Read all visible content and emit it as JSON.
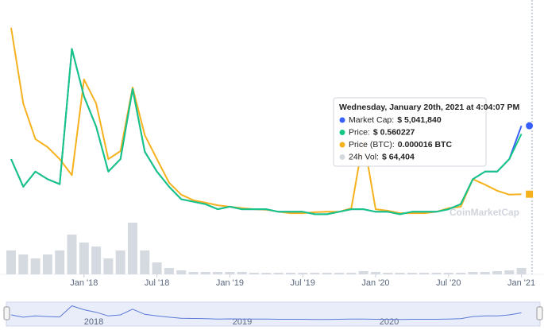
{
  "chart_data": {
    "type": "line",
    "x": [
      "2017-07",
      "2017-08",
      "2017-09",
      "2017-10",
      "2017-11",
      "2017-12",
      "2018-01",
      "2018-02",
      "2018-03",
      "2018-04",
      "2018-05",
      "2018-06",
      "2018-07",
      "2018-08",
      "2018-09",
      "2018-10",
      "2018-11",
      "2018-12",
      "2019-01",
      "2019-02",
      "2019-03",
      "2019-04",
      "2019-05",
      "2019-06",
      "2019-07",
      "2019-08",
      "2019-09",
      "2019-10",
      "2019-11",
      "2019-12",
      "2020-01",
      "2020-02",
      "2020-03",
      "2020-04",
      "2020-05",
      "2020-06",
      "2020-07",
      "2020-08",
      "2020-09",
      "2020-10",
      "2020-11",
      "2020-12",
      "2021-01"
    ],
    "xticks": [
      {
        "value": "2018-01",
        "label": "Jan '18"
      },
      {
        "value": "2018-07",
        "label": "Jul '18"
      },
      {
        "value": "2019-01",
        "label": "Jan '19"
      },
      {
        "value": "2019-07",
        "label": "Jul '19"
      },
      {
        "value": "2020-01",
        "label": "Jan '20"
      },
      {
        "value": "2020-07",
        "label": "Jul '20"
      },
      {
        "value": "2021-01",
        "label": "Jan '21"
      }
    ],
    "ylim": [
      0,
      1.0
    ],
    "y2lim": [
      0,
      5e-05
    ],
    "y3lim": [
      0,
      8500000
    ],
    "y4lim": [
      0,
      800000
    ],
    "series": [
      {
        "name": "Market Cap:",
        "color": "#3861fb",
        "axis": "y3",
        "values": [
          3910000,
          2975000,
          3485000,
          3230000,
          3060000,
          7650000,
          6035000,
          5015000,
          3485000,
          3910000,
          6290000,
          4165000,
          3485000,
          2975000,
          2550000,
          2465000,
          2380000,
          2210000,
          2295000,
          2210000,
          2210000,
          2210000,
          2125000,
          2125000,
          2125000,
          2040000,
          2040000,
          2125000,
          2210000,
          2210000,
          2125000,
          2125000,
          2040000,
          2125000,
          2125000,
          2125000,
          2210000,
          2380000,
          3230000,
          3485000,
          3485000,
          3910000,
          5041840
        ]
      },
      {
        "name": "Price:",
        "color": "#16c784",
        "values": [
          0.46,
          0.35,
          0.41,
          0.38,
          0.36,
          0.9,
          0.71,
          0.59,
          0.41,
          0.46,
          0.74,
          0.49,
          0.41,
          0.35,
          0.3,
          0.29,
          0.28,
          0.26,
          0.27,
          0.26,
          0.26,
          0.26,
          0.25,
          0.25,
          0.25,
          0.24,
          0.24,
          0.25,
          0.26,
          0.26,
          0.25,
          0.25,
          0.24,
          0.25,
          0.25,
          0.25,
          0.26,
          0.28,
          0.38,
          0.41,
          0.41,
          0.46,
          0.560227
        ]
      },
      {
        "name": "Price (BTC):",
        "color": "#f5b21e",
        "axis": "y2",
        "values": [
          4.92e-05,
          3.41e-05,
          2.7e-05,
          2.54e-05,
          2.3e-05,
          1.98e-05,
          3.89e-05,
          3.41e-05,
          2.3e-05,
          2.46e-05,
          3.73e-05,
          2.78e-05,
          2.3e-05,
          1.83e-05,
          1.59e-05,
          1.48e-05,
          1.43e-05,
          1.38e-05,
          1.35e-05,
          1.32e-05,
          1.3e-05,
          1.29e-05,
          1.25e-05,
          1.22e-05,
          1.22e-05,
          1.24e-05,
          1.25e-05,
          1.25e-05,
          1.32e-05,
          2.7e-05,
          1.3e-05,
          1.27e-05,
          1.22e-05,
          1.22e-05,
          1.22e-05,
          1.25e-05,
          1.32e-05,
          1.35e-05,
          1.9e-05,
          1.79e-05,
          1.67e-05,
          1.59e-05,
          1.6e-05
        ]
      },
      {
        "name": "24h Vol:",
        "color": "#d5d9e0",
        "axis": "y4",
        "values": [
          240000,
          200000,
          160000,
          200000,
          240000,
          400000,
          320000,
          280000,
          160000,
          240000,
          520000,
          240000,
          120000,
          64000,
          40000,
          24000,
          24000,
          24000,
          24000,
          24000,
          16000,
          16000,
          16000,
          16000,
          16000,
          16000,
          16000,
          16000,
          16000,
          32000,
          24000,
          16000,
          16000,
          16000,
          16000,
          16000,
          16000,
          16000,
          24000,
          24000,
          32000,
          40000,
          64404
        ]
      }
    ],
    "tooltip": {
      "title": "Wednesday, January 20th, 2021 at 4:04:07 PM",
      "values": [
        "$ 5,041,840",
        "$ 0.560227",
        "0.000016 BTC",
        "$ 64,404"
      ]
    },
    "watermark": "CoinMarketCap",
    "navigator_labels": [
      "2018",
      "2019",
      "2020"
    ]
  }
}
